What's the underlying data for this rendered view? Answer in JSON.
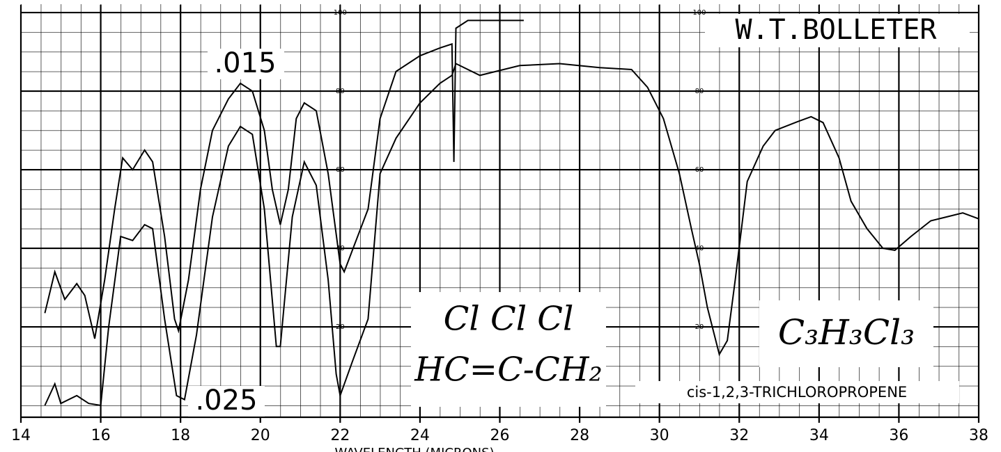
{
  "chart_data": {
    "type": "line",
    "annotations": {
      "author": "W.T.BOLLETER",
      "upper": ".015",
      "lower": ".025",
      "structure_top": "Cl  Cl  Cl",
      "structure_bottom": "HC=C-CH₂",
      "formula": "C₃H₃Cl₃",
      "name": "cis-1,2,3-TRICHLOROPROPENE"
    },
    "xlabel": "WAVELENGTH (MICRONS)",
    "xlim": [
      14,
      38
    ],
    "xticks": [
      14,
      16,
      18,
      20,
      22,
      24,
      26,
      28,
      30,
      32,
      34,
      36,
      38
    ],
    "ylim": [
      -3,
      102
    ],
    "yticks": [
      20,
      40,
      60,
      80,
      100
    ],
    "grid": true,
    "series": [
      {
        "name": ".015",
        "color": "#000000",
        "x": [
          14.6,
          14.85,
          15.1,
          15.4,
          15.6,
          15.85,
          16.1,
          16.35,
          16.55,
          16.8,
          17.1,
          17.3,
          17.6,
          17.85,
          17.95,
          18.2,
          18.5,
          18.8,
          19.2,
          19.5,
          19.8,
          20.1,
          20.3,
          20.5,
          20.7,
          20.9,
          21.1,
          21.4,
          21.7,
          22.0,
          22.1,
          22.4,
          22.7,
          23.0,
          23.4,
          24.0,
          24.5,
          24.8,
          24.85,
          24.9,
          25.2,
          26.6
        ],
        "values": [
          23.5,
          34,
          27,
          31,
          28,
          17,
          32,
          50,
          63,
          60,
          65,
          62,
          43,
          22,
          19,
          32,
          55,
          70,
          78,
          82,
          80,
          70,
          55,
          46,
          55,
          73,
          77,
          75,
          59,
          36,
          34,
          42,
          50,
          73,
          85,
          89,
          91,
          92,
          62,
          96,
          98,
          98
        ]
      },
      {
        "name": ".025",
        "color": "#000000",
        "x": [
          14.6,
          14.85,
          15.0,
          15.4,
          15.7,
          16.0,
          16.2,
          16.5,
          16.8,
          17.1,
          17.3,
          17.6,
          17.9,
          18.1,
          18.4,
          18.8,
          19.2,
          19.5,
          19.8,
          20.1,
          20.4,
          20.5,
          20.8,
          21.1,
          21.4,
          21.7,
          21.9,
          22.0,
          22.3,
          22.7,
          23.0,
          23.4,
          24.0,
          24.5,
          24.8,
          24.9,
          25.5,
          26.5,
          27.5,
          28.5,
          29.3,
          29.7,
          30.1,
          30.5,
          30.8,
          31.0,
          31.2,
          31.5,
          31.7,
          31.9,
          32.2,
          32.6,
          32.9,
          33.4,
          33.8,
          34.1,
          34.5,
          34.8,
          35.2,
          35.6,
          35.9,
          36.3,
          36.8,
          37.2,
          37.6,
          38.0
        ],
        "values": [
          0,
          5.5,
          0.5,
          2.5,
          0.5,
          0,
          20,
          43,
          42,
          46,
          45,
          22,
          2.5,
          1.5,
          18,
          48,
          66,
          71,
          69,
          50,
          15,
          15,
          48,
          62,
          56,
          32,
          8,
          2.5,
          11,
          22,
          59,
          68,
          77,
          82,
          84,
          87,
          84,
          86.5,
          87,
          86,
          85.5,
          81,
          73,
          59,
          45,
          36,
          25,
          13,
          16.5,
          32,
          57,
          66,
          70,
          72,
          73.5,
          72,
          63,
          52,
          45,
          40,
          39.5,
          43,
          47,
          48,
          49,
          47.5
        ]
      }
    ]
  }
}
